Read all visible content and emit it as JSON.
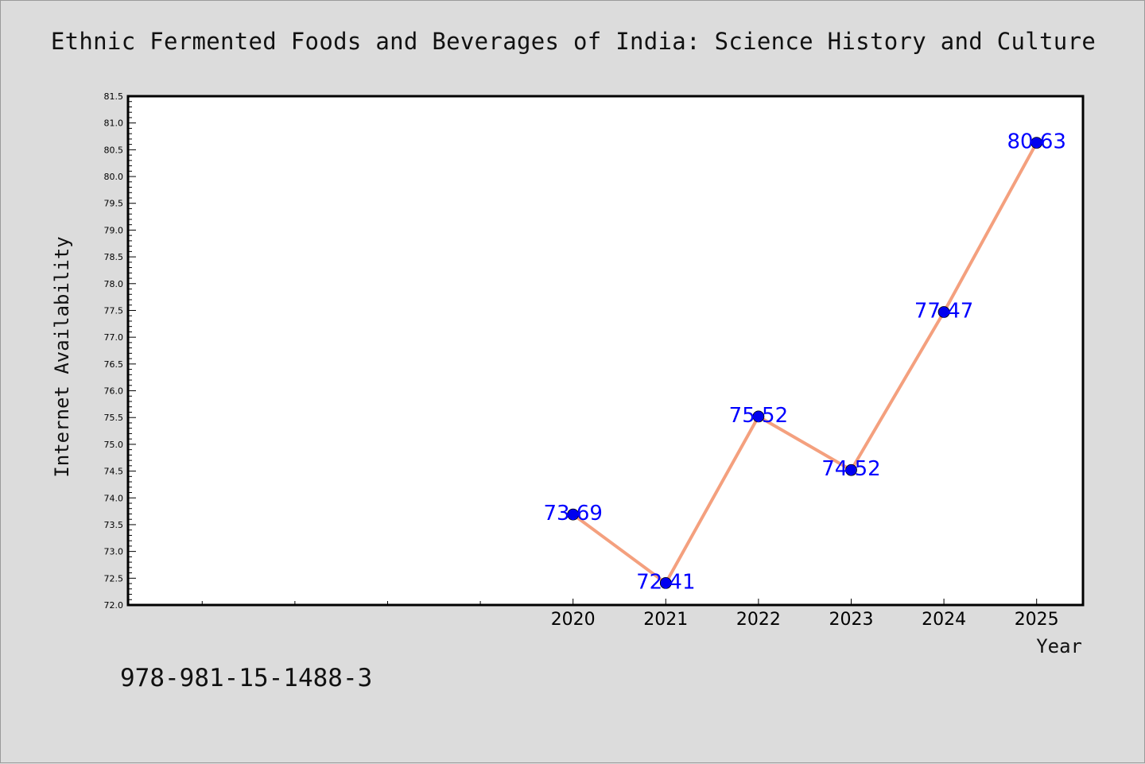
{
  "title": "Ethnic Fermented Foods and Beverages of India: Science History and Culture",
  "footer_text": "978-981-15-1488-3",
  "chart_data": {
    "type": "line",
    "title": "Ethnic Fermented Foods and Beverages of India: Science History and Culture",
    "xlabel": "Year",
    "ylabel": "Internet Availability",
    "x": [
      2020,
      2021,
      2022,
      2023,
      2024,
      2025
    ],
    "x_tick_labels": [
      "2020",
      "2021",
      "2022",
      "2023",
      "2024",
      "2025"
    ],
    "xlim": [
      2015.2,
      2025.5
    ],
    "ylim": [
      72.0,
      81.5
    ],
    "y_tick_labels": [
      "72.0",
      "72.5",
      "73.0",
      "73.5",
      "74.0",
      "74.5",
      "75.0",
      "75.5",
      "76.0",
      "76.5",
      "77.0",
      "77.5",
      "78.0",
      "78.5",
      "79.0",
      "79.5",
      "80.0",
      "80.5",
      "81.0",
      "81.5"
    ],
    "series": [
      {
        "values": [
          73.69,
          72.41,
          75.52,
          74.52,
          77.47,
          80.63
        ],
        "data_labels": [
          "73.69",
          "72.41",
          "75.52",
          "74.52",
          "77.47",
          "80.63"
        ],
        "line_color": "#f4a07e",
        "marker_color": "#0000ee"
      }
    ],
    "label_color": "#0000ff",
    "grid": false,
    "legend": "none"
  }
}
